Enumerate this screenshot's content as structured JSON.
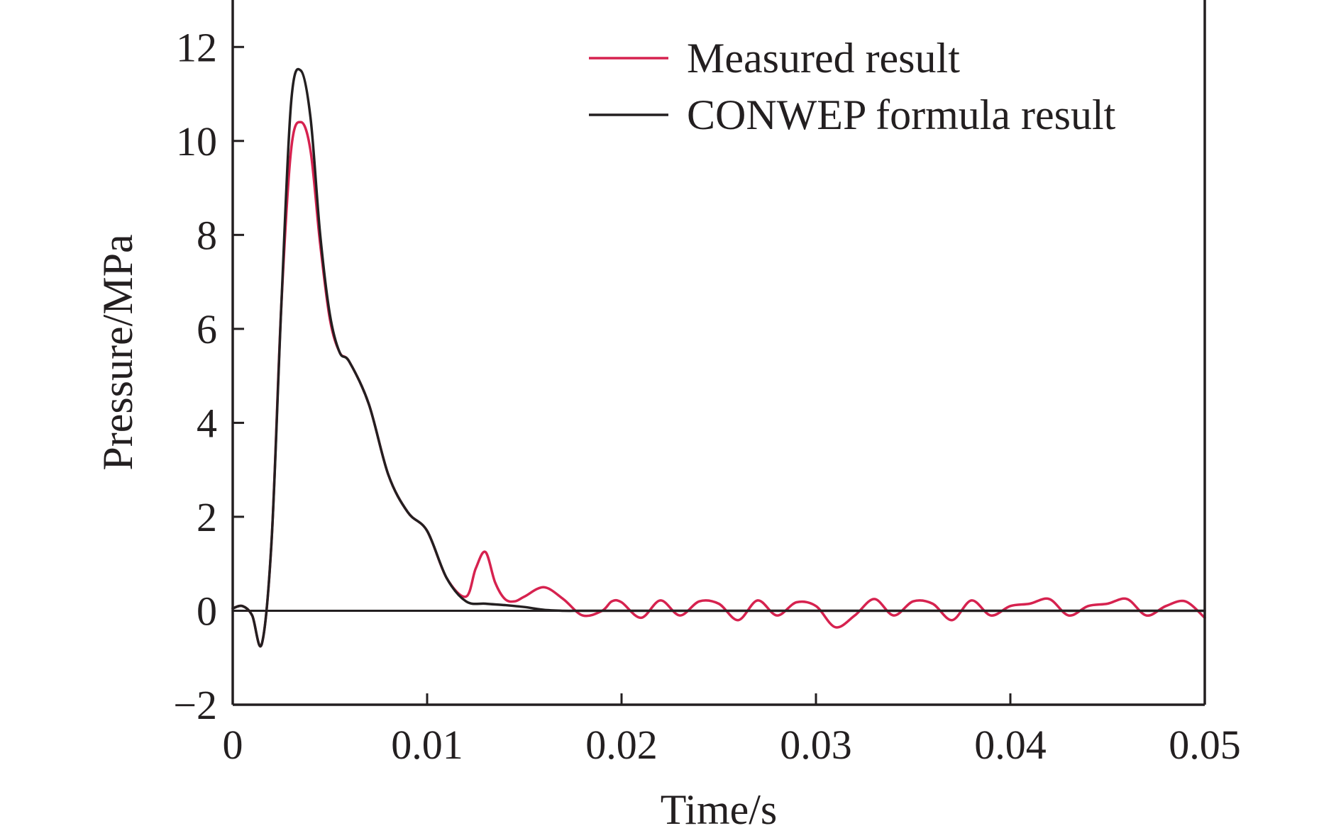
{
  "chart_data": {
    "type": "line",
    "title": "",
    "xlabel": "Time/s",
    "ylabel": "Pressure/MPa",
    "xlim": [
      0,
      0.05
    ],
    "ylim": [
      -2,
      13
    ],
    "x_ticks": [
      0,
      0.01,
      0.02,
      0.03,
      0.04,
      0.05
    ],
    "x_tick_labels": [
      "0",
      "0.01",
      "0.02",
      "0.03",
      "0.04",
      "0.05"
    ],
    "y_ticks": [
      -2,
      0,
      2,
      4,
      6,
      8,
      10,
      12
    ],
    "y_tick_labels": [
      "−2",
      "0",
      "2",
      "4",
      "6",
      "8",
      "10",
      "12"
    ],
    "grid": false,
    "legend_position": "top-right",
    "zero_line": true,
    "series": [
      {
        "name": "Measured result",
        "color": "#d6224f",
        "x": [
          0,
          0.0005,
          0.001,
          0.0015,
          0.002,
          0.0025,
          0.003,
          0.0035,
          0.004,
          0.0045,
          0.005,
          0.0055,
          0.006,
          0.007,
          0.008,
          0.009,
          0.01,
          0.011,
          0.012,
          0.0125,
          0.013,
          0.0135,
          0.014,
          0.0145,
          0.015,
          0.016,
          0.017,
          0.018,
          0.019,
          0.0195,
          0.02,
          0.021,
          0.022,
          0.023,
          0.024,
          0.025,
          0.026,
          0.027,
          0.028,
          0.029,
          0.03,
          0.031,
          0.032,
          0.033,
          0.034,
          0.035,
          0.036,
          0.037,
          0.038,
          0.039,
          0.04,
          0.041,
          0.042,
          0.043,
          0.044,
          0.045,
          0.046,
          0.047,
          0.048,
          0.049,
          0.05
        ],
        "y": [
          0.05,
          0.1,
          -0.1,
          -0.7,
          1.5,
          6.5,
          9.8,
          10.4,
          9.8,
          7.8,
          6.2,
          5.5,
          5.3,
          4.4,
          2.9,
          2.1,
          1.7,
          0.7,
          0.3,
          0.9,
          1.25,
          0.6,
          0.25,
          0.2,
          0.3,
          0.5,
          0.25,
          -0.1,
          0.0,
          0.2,
          0.18,
          -0.15,
          0.22,
          -0.1,
          0.2,
          0.15,
          -0.2,
          0.22,
          -0.1,
          0.18,
          0.1,
          -0.35,
          -0.1,
          0.25,
          -0.1,
          0.2,
          0.15,
          -0.2,
          0.22,
          -0.1,
          0.1,
          0.15,
          0.25,
          -0.1,
          0.1,
          0.15,
          0.25,
          -0.1,
          0.1,
          0.2,
          -0.15
        ]
      },
      {
        "name": "CONWEP formula result",
        "color": "#231f20",
        "x": [
          0,
          0.0005,
          0.001,
          0.0015,
          0.002,
          0.0025,
          0.003,
          0.0035,
          0.004,
          0.0045,
          0.005,
          0.0055,
          0.006,
          0.007,
          0.008,
          0.009,
          0.01,
          0.011,
          0.012,
          0.013,
          0.014,
          0.015,
          0.016,
          0.017,
          0.018,
          0.02,
          0.03,
          0.04,
          0.05
        ],
        "y": [
          0.05,
          0.1,
          -0.1,
          -0.7,
          1.5,
          6.5,
          10.8,
          11.5,
          10.5,
          8.0,
          6.3,
          5.5,
          5.3,
          4.4,
          2.9,
          2.1,
          1.7,
          0.7,
          0.2,
          0.15,
          0.12,
          0.08,
          0.02,
          0.0,
          0.0,
          0.0,
          0.0,
          0.0,
          0.0
        ]
      }
    ]
  }
}
